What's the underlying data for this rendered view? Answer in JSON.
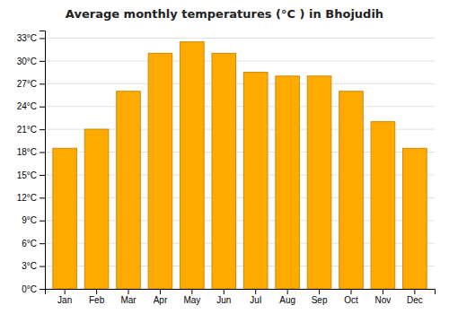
{
  "chart_data": {
    "type": "bar",
    "title": "Average monthly temperatures (°C ) in Bhojudih",
    "categories": [
      "Jan",
      "Feb",
      "Mar",
      "Apr",
      "May",
      "Jun",
      "Jul",
      "Aug",
      "Sep",
      "Oct",
      "Nov",
      "Dec"
    ],
    "values": [
      18.5,
      21.0,
      26.0,
      31.0,
      32.5,
      31.0,
      28.5,
      28.0,
      28.0,
      26.0,
      22.0,
      18.5
    ],
    "color": "#FFAA00",
    "ylim": [
      0,
      34
    ],
    "yticks": [
      {
        "value": 0,
        "label": "0°C"
      },
      {
        "value": 3,
        "label": "3°C"
      },
      {
        "value": 6,
        "label": "6°C"
      },
      {
        "value": 9,
        "label": "9°C"
      },
      {
        "value": 12,
        "label": "12°C"
      },
      {
        "value": 15,
        "label": "15°C"
      },
      {
        "value": 18,
        "label": "18°C"
      },
      {
        "value": 21,
        "label": "21°C"
      },
      {
        "value": 24,
        "label": "24°C"
      },
      {
        "value": 27,
        "label": "27°C"
      },
      {
        "value": 30,
        "label": "30°C"
      },
      {
        "value": 33,
        "label": "33°C"
      }
    ],
    "grid": true
  }
}
